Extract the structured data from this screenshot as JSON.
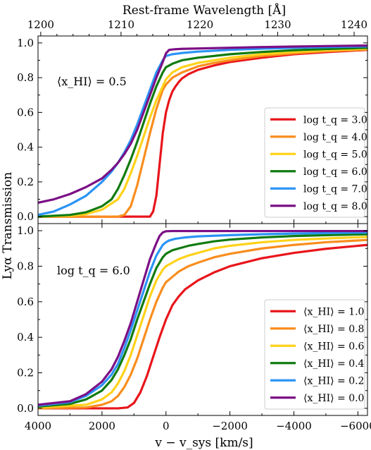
{
  "chart_data": {
    "type": "line",
    "ylabel": "Lyα Transmission",
    "xlabel": "v − v_sys [km/s]",
    "top_xlabel": "Rest-frame Wavelength [Å]",
    "xlim": [
      4000,
      -6300
    ],
    "ylim": [
      -0.04,
      1.04
    ],
    "x_ticks": [
      4000,
      2000,
      0,
      -2000,
      -4000,
      -6000
    ],
    "x_tick_labels": [
      "4000",
      "2000",
      "0",
      "−2000",
      "−4000",
      "−6000"
    ],
    "top_ticks_angstrom": [
      1200,
      1210,
      1220,
      1230,
      1240
    ],
    "top_tick_labels": [
      "1200",
      "1210",
      "1220",
      "1230",
      "1240"
    ],
    "y_ticks": [
      0.0,
      0.2,
      0.4,
      0.6,
      0.8,
      1.0
    ],
    "y_tick_labels": [
      "0.0",
      "0.2",
      "0.4",
      "0.6",
      "0.8",
      "1.0"
    ],
    "panels": [
      {
        "annotation": "⟨x_HI⟩ = 0.5",
        "legend_loc": "lower right",
        "series": [
          {
            "name": "log t_q = 3.0",
            "color": "#e8151b",
            "x": [
              4000,
              1000,
              500,
              400,
              300,
              200,
              100,
              0,
              -100,
              -200,
              -300,
              -400,
              -500,
              -700,
              -1000,
              -1500,
              -2000,
              -3000,
              -4000,
              -5000,
              -6300
            ],
            "y": [
              0.0,
              0.0,
              0.0,
              0.03,
              0.12,
              0.3,
              0.48,
              0.6,
              0.67,
              0.72,
              0.75,
              0.775,
              0.795,
              0.82,
              0.845,
              0.87,
              0.89,
              0.915,
              0.935,
              0.947,
              0.96
            ]
          },
          {
            "name": "log t_q = 4.0",
            "color": "#f98d1d",
            "x": [
              4000,
              1500,
              1300,
              1100,
              900,
              700,
              500,
              300,
              100,
              0,
              -200,
              -500,
              -1000,
              -1500,
              -2000,
              -3000,
              -4000,
              -5000,
              -6300
            ],
            "y": [
              0.0,
              0.0,
              0.01,
              0.06,
              0.18,
              0.33,
              0.48,
              0.62,
              0.73,
              0.76,
              0.8,
              0.83,
              0.865,
              0.885,
              0.9,
              0.925,
              0.94,
              0.952,
              0.962
            ]
          },
          {
            "name": "log t_q = 5.0",
            "color": "#ffd21a",
            "x": [
              4000,
              3000,
              2500,
              2000,
              1500,
              1300,
              1100,
              900,
              700,
              500,
              300,
              100,
              0,
              -200,
              -500,
              -1000,
              -2000,
              -3000,
              -4000,
              -5000,
              -6300
            ],
            "y": [
              0.0,
              0.005,
              0.015,
              0.04,
              0.1,
              0.16,
              0.25,
              0.35,
              0.46,
              0.57,
              0.67,
              0.75,
              0.79,
              0.83,
              0.86,
              0.885,
              0.915,
              0.935,
              0.948,
              0.958,
              0.967
            ]
          },
          {
            "name": "log t_q = 6.0",
            "color": "#107b10",
            "x": [
              4000,
              3000,
              2500,
              2000,
              1700,
              1500,
              1300,
              1100,
              900,
              700,
              500,
              300,
              100,
              0,
              -200,
              -500,
              -1000,
              -2000,
              -3000,
              -4000,
              -5000,
              -6300
            ],
            "y": [
              0.0,
              0.01,
              0.025,
              0.06,
              0.1,
              0.16,
              0.24,
              0.33,
              0.43,
              0.54,
              0.65,
              0.75,
              0.83,
              0.86,
              0.88,
              0.9,
              0.915,
              0.935,
              0.948,
              0.958,
              0.965,
              0.972
            ]
          },
          {
            "name": "log t_q = 7.0",
            "color": "#2b94f5",
            "x": [
              4000,
              3500,
              3000,
              2500,
              2000,
              1700,
              1500,
              1300,
              1100,
              900,
              700,
              500,
              300,
              100,
              0,
              -200,
              -500,
              -1000,
              -2000,
              -3000,
              -4000,
              -5000,
              -6300
            ],
            "y": [
              0.01,
              0.03,
              0.07,
              0.12,
              0.2,
              0.26,
              0.31,
              0.37,
              0.44,
              0.53,
              0.63,
              0.73,
              0.83,
              0.9,
              0.925,
              0.935,
              0.942,
              0.95,
              0.96,
              0.967,
              0.972,
              0.976,
              0.98
            ]
          },
          {
            "name": "log t_q = 8.0",
            "color": "#7b0f85",
            "x": [
              4000,
              3500,
              3000,
              2500,
              2000,
              1700,
              1500,
              1300,
              1100,
              900,
              700,
              500,
              300,
              100,
              0,
              -100,
              -300,
              -500,
              -1000,
              -2000,
              -3000,
              -4000,
              -5000,
              -6300
            ],
            "y": [
              0.08,
              0.1,
              0.13,
              0.17,
              0.22,
              0.27,
              0.31,
              0.36,
              0.42,
              0.5,
              0.6,
              0.7,
              0.8,
              0.89,
              0.94,
              0.96,
              0.964,
              0.966,
              0.968,
              0.972,
              0.976,
              0.979,
              0.982,
              0.985
            ]
          }
        ]
      },
      {
        "annotation": "log t_q = 6.0",
        "legend_loc": "lower right",
        "series": [
          {
            "name": "⟨x_HI⟩ = 1.0",
            "color": "#e8151b",
            "x": [
              4000,
              2000,
              1500,
              1200,
              1000,
              800,
              600,
              400,
              200,
              0,
              -200,
              -400,
              -600,
              -1000,
              -1500,
              -2000,
              -3000,
              -4000,
              -5000,
              -6300
            ],
            "y": [
              0.0,
              0.0,
              0.0,
              0.005,
              0.03,
              0.09,
              0.18,
              0.29,
              0.4,
              0.5,
              0.58,
              0.63,
              0.67,
              0.72,
              0.765,
              0.8,
              0.845,
              0.875,
              0.898,
              0.92
            ]
          },
          {
            "name": "⟨x_HI⟩ = 0.8",
            "color": "#f98d1d",
            "x": [
              4000,
              2500,
              2000,
              1700,
              1500,
              1300,
              1100,
              900,
              700,
              500,
              300,
              100,
              0,
              -200,
              -400,
              -700,
              -1000,
              -1500,
              -2000,
              -3000,
              -4000,
              -5000,
              -6300
            ],
            "y": [
              0.0,
              0.005,
              0.02,
              0.04,
              0.07,
              0.12,
              0.19,
              0.28,
              0.39,
              0.5,
              0.6,
              0.68,
              0.71,
              0.74,
              0.77,
              0.8,
              0.82,
              0.85,
              0.87,
              0.9,
              0.92,
              0.935,
              0.948
            ]
          },
          {
            "name": "⟨x_HI⟩ = 0.6",
            "color": "#ffd21a",
            "x": [
              4000,
              2500,
              2000,
              1700,
              1500,
              1300,
              1100,
              900,
              700,
              500,
              300,
              100,
              0,
              -200,
              -400,
              -700,
              -1000,
              -1500,
              -2000,
              -3000,
              -4000,
              -5000,
              -6300
            ],
            "y": [
              0.005,
              0.02,
              0.05,
              0.09,
              0.14,
              0.21,
              0.3,
              0.41,
              0.52,
              0.63,
              0.72,
              0.78,
              0.8,
              0.82,
              0.84,
              0.86,
              0.875,
              0.9,
              0.915,
              0.935,
              0.948,
              0.956,
              0.965
            ]
          },
          {
            "name": "⟨x_HI⟩ = 0.4",
            "color": "#107b10",
            "x": [
              4000,
              3000,
              2500,
              2000,
              1700,
              1500,
              1300,
              1100,
              900,
              700,
              500,
              300,
              100,
              0,
              -200,
              -400,
              -700,
              -1000,
              -1500,
              -2000,
              -3000,
              -4000,
              -5000,
              -6300
            ],
            "y": [
              0.01,
              0.025,
              0.05,
              0.1,
              0.16,
              0.22,
              0.3,
              0.39,
              0.5,
              0.6,
              0.7,
              0.79,
              0.85,
              0.87,
              0.89,
              0.9,
              0.915,
              0.925,
              0.94,
              0.95,
              0.962,
              0.97,
              0.975,
              0.98
            ]
          },
          {
            "name": "⟨x_HI⟩ = 0.2",
            "color": "#2b94f5",
            "x": [
              4000,
              3000,
              2500,
              2000,
              1700,
              1500,
              1300,
              1100,
              900,
              700,
              500,
              300,
              100,
              0,
              -100,
              -300,
              -600,
              -1000,
              -2000,
              -3000,
              -4000,
              -5000,
              -6300
            ],
            "y": [
              0.015,
              0.035,
              0.07,
              0.13,
              0.19,
              0.25,
              0.34,
              0.44,
              0.55,
              0.66,
              0.77,
              0.86,
              0.92,
              0.935,
              0.945,
              0.955,
              0.962,
              0.968,
              0.975,
              0.98,
              0.984,
              0.987,
              0.99
            ]
          },
          {
            "name": "⟨x_HI⟩ = 0.0",
            "color": "#7b0f85",
            "x": [
              4000,
              3000,
              2500,
              2000,
              1700,
              1500,
              1300,
              1100,
              900,
              700,
              500,
              300,
              200,
              100,
              0,
              -200,
              -400,
              -1000,
              -2000,
              -4000,
              -6300
            ],
            "y": [
              0.02,
              0.04,
              0.08,
              0.15,
              0.22,
              0.29,
              0.38,
              0.48,
              0.6,
              0.72,
              0.84,
              0.93,
              0.97,
              0.99,
              0.997,
              0.998,
              0.998,
              0.998,
              0.998,
              0.998,
              0.998
            ]
          }
        ]
      }
    ]
  }
}
